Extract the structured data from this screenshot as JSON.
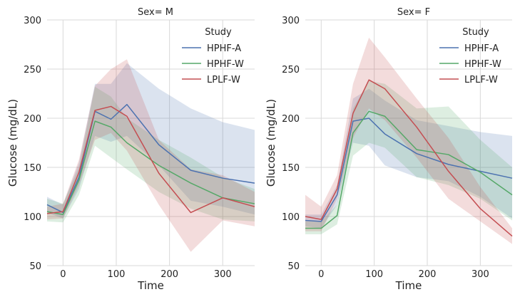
{
  "chart_data": [
    {
      "type": "line",
      "title": "Sex= M",
      "xlabel": "Time",
      "ylabel": "Glucose (mg/dL)",
      "x": [
        -30,
        0,
        30,
        60,
        90,
        120,
        180,
        240,
        300,
        360
      ],
      "xlim": [
        -30,
        360
      ],
      "ylim": [
        50,
        300
      ],
      "xticks": [
        0,
        100,
        200,
        300
      ],
      "yticks": [
        50,
        100,
        150,
        200,
        250,
        300
      ],
      "grid": true,
      "legend": {
        "title": "Study",
        "position": "top-right"
      },
      "series": [
        {
          "name": "HPHF-A",
          "color": "#4c72b0",
          "values": [
            112,
            104,
            140,
            207,
            199,
            214,
            173,
            147,
            139,
            134
          ],
          "lower": [
            104,
            98,
            128,
            182,
            176,
            182,
            152,
            116,
            110,
            102
          ],
          "upper": [
            120,
            112,
            155,
            235,
            235,
            256,
            230,
            210,
            196,
            188
          ]
        },
        {
          "name": "HPHF-W",
          "color": "#55a868",
          "values": [
            105,
            102,
            137,
            197,
            191,
            175,
            152,
            134,
            119,
            113
          ],
          "lower": [
            95,
            94,
            122,
            172,
            160,
            148,
            125,
            108,
            97,
            95
          ],
          "upper": [
            118,
            113,
            150,
            232,
            222,
            200,
            178,
            160,
            140,
            128
          ]
        },
        {
          "name": "LPLF-W",
          "color": "#c44e52",
          "values": [
            103,
            105,
            145,
            208,
            212,
            202,
            144,
            104,
            119,
            110
          ],
          "lower": [
            97,
            98,
            132,
            178,
            185,
            167,
            112,
            64,
            96,
            90
          ],
          "upper": [
            110,
            113,
            158,
            233,
            250,
            260,
            178,
            148,
            142,
            125
          ]
        }
      ]
    },
    {
      "type": "line",
      "title": "Sex= F",
      "xlabel": "Time",
      "ylabel": "Glucose (mg/dL)",
      "x": [
        -30,
        0,
        30,
        60,
        90,
        120,
        180,
        240,
        300,
        360
      ],
      "xlim": [
        -30,
        360
      ],
      "ylim": [
        50,
        300
      ],
      "xticks": [
        0,
        100,
        200,
        300
      ],
      "yticks": [
        50,
        100,
        150,
        200,
        250,
        300
      ],
      "grid": true,
      "legend": {
        "title": "Study",
        "position": "top-right"
      },
      "series": [
        {
          "name": "HPHF-A",
          "color": "#4c72b0",
          "values": [
            96,
            95,
            122,
            197,
            200,
            184,
            164,
            153,
            146,
            139
          ],
          "lower": [
            90,
            88,
            112,
            175,
            172,
            152,
            140,
            136,
            120,
            98
          ],
          "upper": [
            102,
            102,
            132,
            220,
            230,
            218,
            198,
            192,
            186,
            182
          ]
        },
        {
          "name": "HPHF-W",
          "color": "#55a868",
          "values": [
            88,
            88,
            101,
            185,
            207,
            202,
            168,
            163,
            145,
            122
          ],
          "lower": [
            82,
            82,
            92,
            162,
            175,
            170,
            140,
            132,
            118,
            96
          ],
          "upper": [
            95,
            95,
            112,
            210,
            238,
            235,
            210,
            212,
            178,
            150
          ]
        },
        {
          "name": "LPLF-W",
          "color": "#c44e52",
          "values": [
            100,
            97,
            128,
            205,
            239,
            230,
            191,
            146,
            108,
            80
          ],
          "lower": [
            85,
            85,
            118,
            180,
            210,
            198,
            160,
            118,
            95,
            72
          ],
          "upper": [
            122,
            110,
            142,
            235,
            282,
            262,
            220,
            180,
            130,
            88
          ]
        }
      ]
    }
  ]
}
